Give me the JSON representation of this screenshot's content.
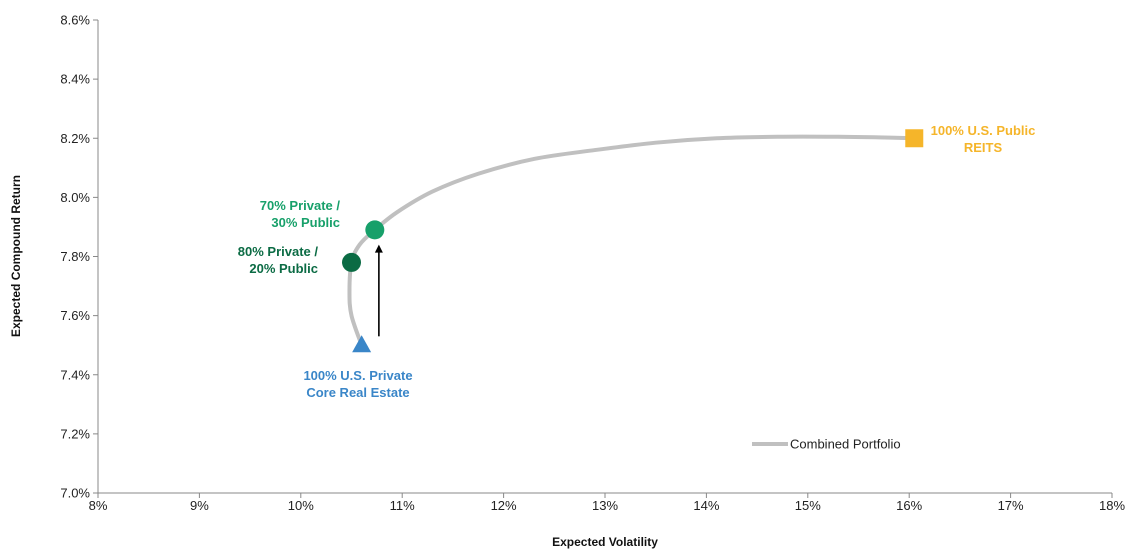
{
  "chart_data": {
    "type": "scatter",
    "title": "",
    "xlabel": "Expected Volatility",
    "ylabel": "Expected Compound Return",
    "xlim": [
      8,
      18
    ],
    "ylim": [
      7.0,
      8.6
    ],
    "x_ticks": [
      8,
      9,
      10,
      11,
      12,
      13,
      14,
      15,
      16,
      17,
      18
    ],
    "y_ticks": [
      7.0,
      7.2,
      7.4,
      7.6,
      7.8,
      8.0,
      8.2,
      8.4,
      8.6
    ],
    "x_tick_labels": [
      "8%",
      "9%",
      "10%",
      "11%",
      "12%",
      "13%",
      "14%",
      "15%",
      "16%",
      "17%",
      "18%"
    ],
    "y_tick_labels": [
      "7.0%",
      "7.2%",
      "7.4%",
      "7.6%",
      "7.8%",
      "8.0%",
      "8.2%",
      "8.4%",
      "8.6%"
    ],
    "grid": false,
    "legend": {
      "position": "bottom-right",
      "entries": [
        "Combined Portfolio"
      ]
    },
    "series": [
      {
        "name": "Combined Portfolio",
        "type": "line",
        "color": "#c0c0c0",
        "x": [
          10.6,
          10.5,
          10.48,
          10.5,
          10.58,
          10.73,
          10.95,
          11.3,
          11.75,
          12.3,
          12.9,
          13.5,
          14.1,
          14.7,
          15.3,
          15.7,
          16.05
        ],
        "y": [
          7.5,
          7.6,
          7.68,
          7.78,
          7.84,
          7.89,
          7.95,
          8.02,
          8.08,
          8.13,
          8.16,
          8.185,
          8.2,
          8.205,
          8.205,
          8.203,
          8.2
        ]
      }
    ],
    "points": [
      {
        "label_lines": [
          "100% U.S. Private",
          "Core Real Estate"
        ],
        "x": 10.6,
        "y": 7.5,
        "marker": "triangle",
        "color": "#3a86c8"
      },
      {
        "label_lines": [
          "80% Private /",
          "20% Public"
        ],
        "x": 10.5,
        "y": 7.78,
        "marker": "circle",
        "color": "#0b6b44"
      },
      {
        "label_lines": [
          "70% Private /",
          "30% Public"
        ],
        "x": 10.73,
        "y": 7.89,
        "marker": "circle",
        "color": "#17a06a"
      },
      {
        "label_lines": [
          "100% U.S. Public",
          "REITS"
        ],
        "x": 16.05,
        "y": 8.2,
        "marker": "square",
        "color": "#f5b52a"
      }
    ],
    "annotations": [
      {
        "type": "arrow",
        "x": 10.77,
        "y_from": 7.53,
        "y_to": 7.84,
        "color": "#000000"
      }
    ]
  }
}
